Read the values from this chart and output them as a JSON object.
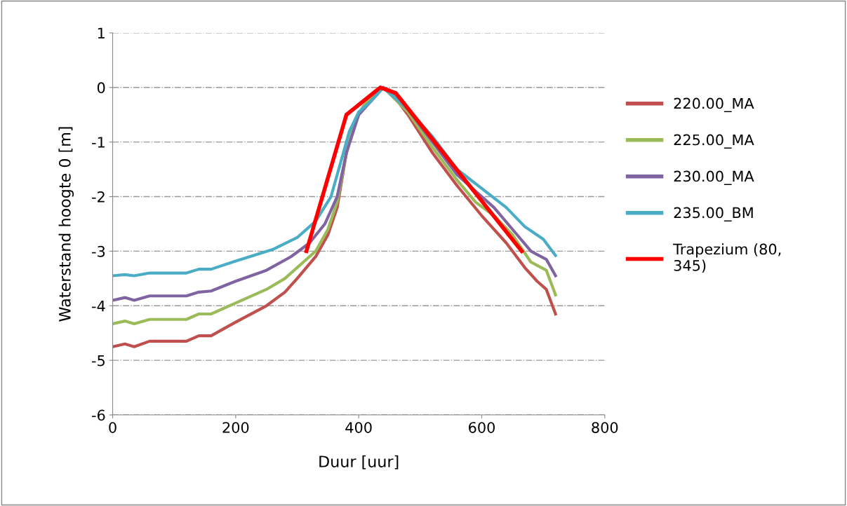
{
  "chart_data": {
    "type": "line",
    "xlabel": "Duur [uur]",
    "ylabel": "Waterstand hoogte 0 [m]",
    "xlim": [
      0,
      800
    ],
    "xticks": [
      0,
      200,
      400,
      600,
      800
    ],
    "ylim": [
      -6,
      1
    ],
    "yticks": [
      -6,
      -5,
      -4,
      -3,
      -2,
      -1,
      0,
      1
    ],
    "grid": "y",
    "legend": "right",
    "marker": "none",
    "line_style": "solid",
    "series": [
      {
        "name": "220.00_MA",
        "color": "#c0504d",
        "x": [
          0,
          20,
          35,
          60,
          120,
          140,
          160,
          200,
          250,
          280,
          300,
          330,
          350,
          365,
          380,
          395,
          410,
          430,
          440,
          450,
          480,
          520,
          560,
          600,
          640,
          670,
          690,
          705,
          720
        ],
        "values": [
          -4.75,
          -4.7,
          -4.75,
          -4.65,
          -4.65,
          -4.55,
          -4.55,
          -4.3,
          -4.0,
          -3.75,
          -3.5,
          -3.1,
          -2.7,
          -2.2,
          -1.2,
          -0.6,
          -0.3,
          -0.05,
          0,
          -0.05,
          -0.5,
          -1.2,
          -1.8,
          -2.35,
          -2.85,
          -3.3,
          -3.55,
          -3.7,
          -4.15
        ]
      },
      {
        "name": "225.00_MA",
        "color": "#9bbb59",
        "x": [
          0,
          20,
          35,
          60,
          120,
          140,
          160,
          200,
          250,
          280,
          310,
          330,
          350,
          365,
          380,
          395,
          410,
          440,
          480,
          520,
          560,
          590,
          620,
          650,
          680,
          705,
          720
        ],
        "values": [
          -4.33,
          -4.28,
          -4.33,
          -4.25,
          -4.25,
          -4.15,
          -4.15,
          -3.95,
          -3.7,
          -3.5,
          -3.2,
          -3.0,
          -2.6,
          -2.1,
          -1.2,
          -0.6,
          -0.3,
          0,
          -0.45,
          -1.1,
          -1.7,
          -2.1,
          -2.35,
          -2.7,
          -3.2,
          -3.35,
          -3.8
        ]
      },
      {
        "name": "230.00_MA",
        "color": "#8064a2",
        "x": [
          0,
          20,
          35,
          60,
          120,
          140,
          160,
          200,
          250,
          290,
          320,
          345,
          365,
          380,
          400,
          440,
          480,
          520,
          560,
          590,
          620,
          650,
          680,
          705,
          720
        ],
        "values": [
          -3.9,
          -3.85,
          -3.9,
          -3.82,
          -3.82,
          -3.75,
          -3.73,
          -3.55,
          -3.35,
          -3.1,
          -2.85,
          -2.5,
          -2.0,
          -1.2,
          -0.5,
          0,
          -0.4,
          -1.0,
          -1.6,
          -1.9,
          -2.2,
          -2.6,
          -3.0,
          -3.15,
          -3.45
        ]
      },
      {
        "name": "235.00_BM",
        "color": "#4bacc6",
        "x": [
          0,
          20,
          35,
          60,
          120,
          140,
          160,
          200,
          260,
          300,
          330,
          355,
          370,
          385,
          400,
          420,
          440,
          480,
          520,
          560,
          600,
          640,
          670,
          700,
          720
        ],
        "values": [
          -3.45,
          -3.43,
          -3.45,
          -3.4,
          -3.4,
          -3.33,
          -3.33,
          -3.18,
          -2.97,
          -2.75,
          -2.45,
          -2.0,
          -1.4,
          -0.8,
          -0.45,
          -0.25,
          0,
          -0.4,
          -0.9,
          -1.5,
          -1.85,
          -2.2,
          -2.55,
          -2.78,
          -3.08
        ]
      },
      {
        "name": "Trapezium (80,\n345)",
        "color": "#ff0000",
        "x": [
          315,
          380,
          435,
          460,
          665
        ],
        "values": [
          -3,
          -0.5,
          0,
          -0.1,
          -3
        ]
      }
    ]
  }
}
